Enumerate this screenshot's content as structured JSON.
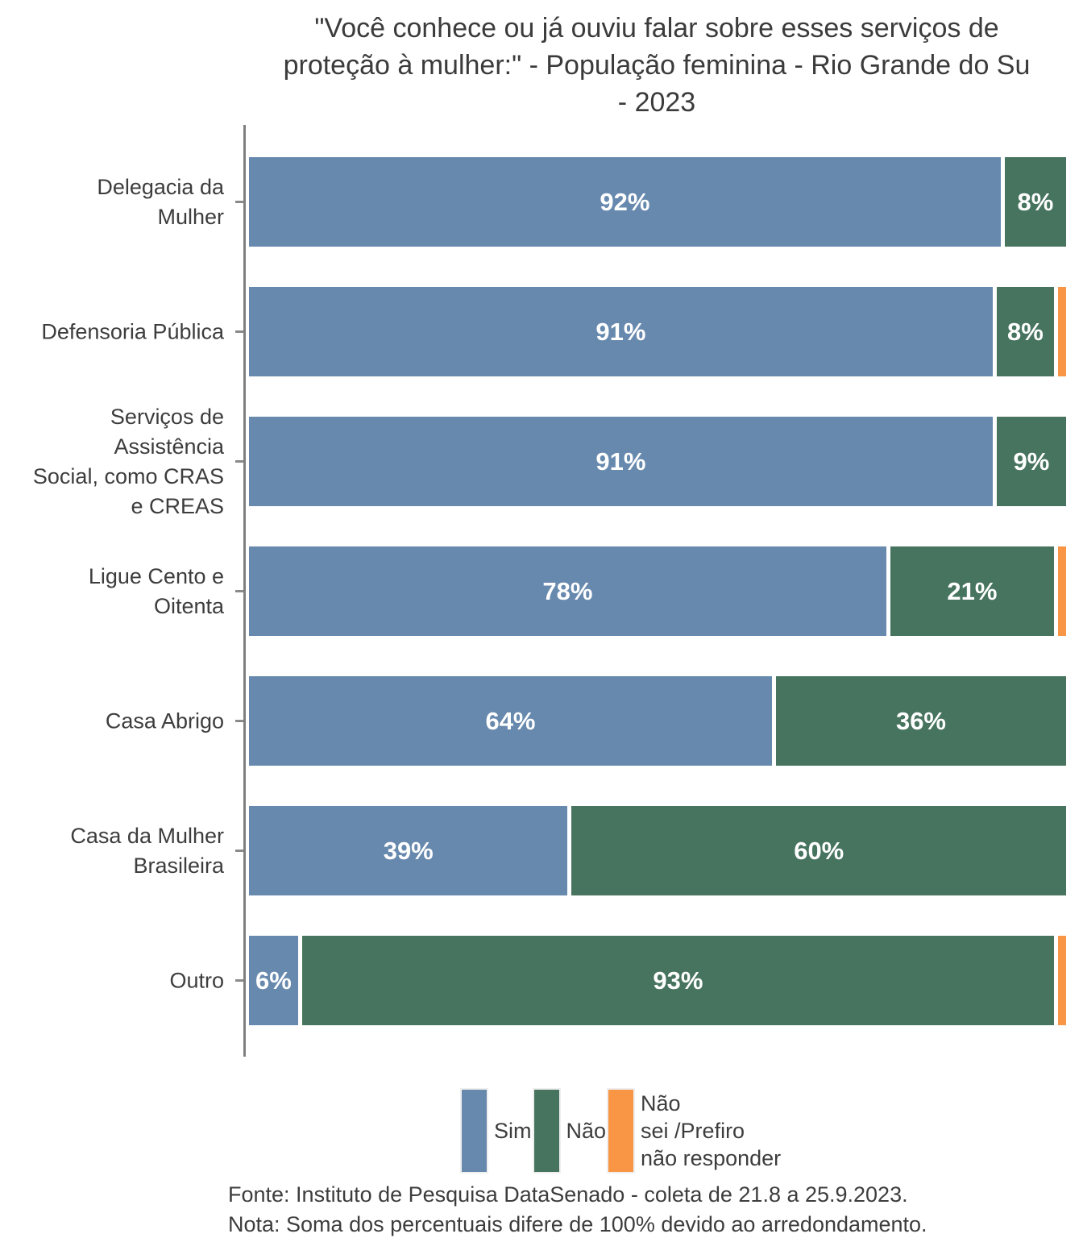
{
  "chart_data": {
    "type": "bar",
    "orientation": "horizontal",
    "stacked": true,
    "title": "\"Você conhece ou já ouviu falar sobre esses serviços de proteção à mulher:\" - População feminina - Rio Grande do Su - 2023",
    "title_lines": [
      "\"Você conhece ou já ouviu falar sobre esses serviços de",
      "proteção à mulher:\" - População feminina - Rio Grande do Su",
      "- 2023"
    ],
    "categories": [
      "Delegacia da Mulher",
      "Defensoria Pública",
      "Serviços de Assistência Social, como CRAS e CREAS",
      "Ligue Cento e Oitenta",
      "Casa Abrigo",
      "Casa da Mulher Brasileira",
      "Outro"
    ],
    "category_lines": [
      [
        "Delegacia da",
        "Mulher"
      ],
      [
        "Defensoria Pública"
      ],
      [
        "Serviços de",
        "Assistência",
        "Social, como CRAS",
        "e CREAS"
      ],
      [
        "Ligue Cento e",
        "Oitenta"
      ],
      [
        "Casa Abrigo"
      ],
      [
        "Casa da Mulher",
        "Brasileira"
      ],
      [
        "Outro"
      ]
    ],
    "series": [
      {
        "name": "Sim",
        "color": "#6789AE",
        "values": [
          92,
          91,
          91,
          78,
          64,
          39,
          6
        ]
      },
      {
        "name": "Não",
        "color": "#47745F",
        "values": [
          8,
          8,
          9,
          21,
          36,
          60,
          93
        ]
      },
      {
        "name": "Não sei /Prefiro não responder",
        "color": "#F89646",
        "values": [
          0,
          1,
          0,
          1,
          0,
          0,
          1
        ]
      }
    ],
    "value_suffix": "%",
    "xlim": [
      0,
      100
    ],
    "grid": false,
    "legend_position": "bottom",
    "axis_color": "#7F7F7F",
    "text_color": "#3D3D3D",
    "bar_label_color": "#FFFFFF"
  },
  "legend": {
    "items": [
      {
        "label": "Sim",
        "lines": [
          "Sim"
        ],
        "color": "#6789AE"
      },
      {
        "label": "Não",
        "lines": [
          "Não"
        ],
        "color": "#47745F"
      },
      {
        "label": "Não sei /Prefiro não responder",
        "lines": [
          "Não",
          "sei /Prefiro",
          "não responder"
        ],
        "color": "#F89646"
      }
    ]
  },
  "footer": {
    "lines": [
      "Fonte: Instituto de Pesquisa DataSenado - coleta de 21.8 a 25.9.2023.",
      "Nota: Soma dos percentuais difere de 100% devido ao arredondamento."
    ]
  }
}
